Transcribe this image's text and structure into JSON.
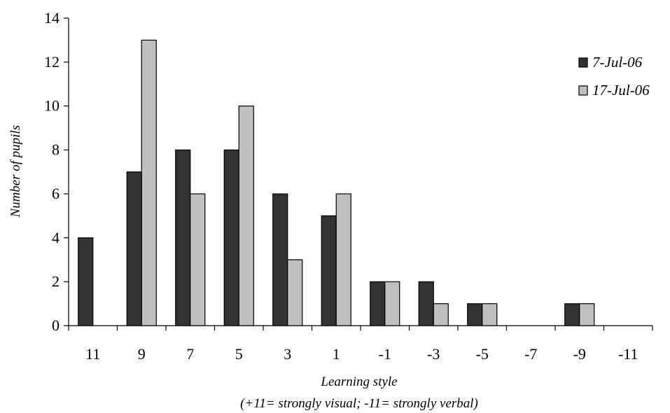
{
  "chart_data": {
    "type": "bar",
    "categories": [
      "11",
      "9",
      "7",
      "5",
      "3",
      "1",
      "-1",
      "-3",
      "-5",
      "-7",
      "-9",
      "-11"
    ],
    "series": [
      {
        "name": "7-Jul-06",
        "color": "#333333",
        "values": [
          4,
          7,
          8,
          8,
          6,
          5,
          2,
          2,
          1,
          0,
          1,
          0
        ]
      },
      {
        "name": "17-Jul-06",
        "color": "#c0c0c0",
        "values": [
          0,
          13,
          6,
          10,
          3,
          6,
          2,
          1,
          1,
          0,
          1,
          0
        ]
      }
    ],
    "ylabel": "Number of pupils",
    "xlabel": "Learning style",
    "xlabel_note": "(+11= strongly visual; -11= strongly verbal)",
    "ylim": [
      0,
      14
    ],
    "yticks": [
      0,
      2,
      4,
      6,
      8,
      10,
      12,
      14
    ],
    "grid": false,
    "legend_position": "top-right"
  }
}
